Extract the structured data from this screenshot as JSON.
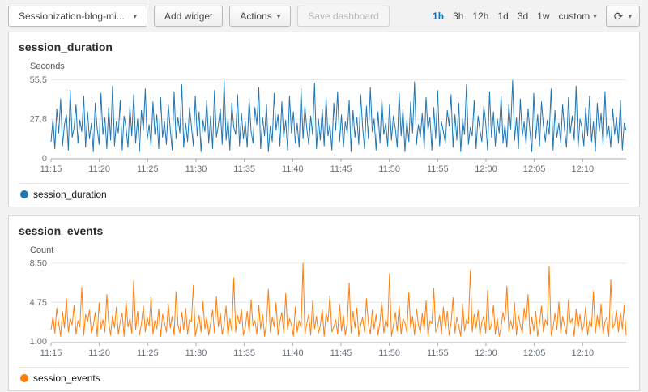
{
  "icons": {
    "caret_down": "▾",
    "refresh": "⟳"
  },
  "colors": {
    "accent_blue": "#0073bb",
    "series_blue": "#1f77b4",
    "series_orange": "#ff7f0e"
  },
  "toolbar": {
    "dashboard_name": "Sessionization-blog-mi...",
    "add_widget": "Add widget",
    "actions": "Actions",
    "save_dashboard": "Save dashboard",
    "ranges": [
      "1h",
      "3h",
      "12h",
      "1d",
      "3d",
      "1w"
    ],
    "selected_range": "1h",
    "custom_label": "custom"
  },
  "chart_data": [
    {
      "type": "line",
      "title": "session_duration",
      "ylabel": "Seconds",
      "color": "#1f77b4",
      "ylim": [
        0,
        58
      ],
      "y_ticks": [
        0,
        27.8,
        55.5
      ],
      "y_tick_labels": [
        "0",
        "27.8",
        "55.5"
      ],
      "x_labels": [
        "11:15",
        "11:20",
        "11:25",
        "11:30",
        "11:35",
        "11:40",
        "11:45",
        "11:50",
        "11:55",
        "12:00",
        "12:05",
        "12:10"
      ],
      "x_tick_interval_minutes": 5,
      "x_total_minutes": 59.5,
      "grid": "horizontal-only",
      "legend": [
        {
          "label": "session_duration",
          "color": "#1f77b4"
        }
      ],
      "values": [
        12,
        28,
        7,
        35,
        18,
        42,
        9,
        24,
        31,
        6,
        48,
        15,
        22,
        38,
        11,
        27,
        19,
        44,
        8,
        33,
        14,
        25,
        5,
        39,
        21,
        10,
        46,
        17,
        29,
        7,
        36,
        13,
        51,
        9,
        26,
        18,
        41,
        6,
        30,
        22,
        8,
        37,
        16,
        45,
        11,
        28,
        5,
        34,
        20,
        49,
        13,
        24,
        9,
        40,
        17,
        31,
        7,
        43,
        15,
        26,
        10,
        38,
        21,
        6,
        47,
        14,
        29,
        18,
        52,
        8,
        25,
        12,
        36,
        23,
        9,
        44,
        16,
        33,
        5,
        27,
        19,
        41,
        11,
        30,
        7,
        48,
        15,
        24,
        35,
        10,
        55,
        13,
        28,
        6,
        39,
        22,
        17,
        45,
        9,
        32,
        14,
        26,
        8,
        42,
        19,
        11,
        36,
        24,
        50,
        7,
        29,
        16,
        38,
        5,
        23,
        12,
        46,
        20,
        31,
        9,
        40,
        15,
        27,
        6,
        44,
        18,
        33,
        11,
        25,
        8,
        49,
        14,
        37,
        21,
        10,
        30,
        17,
        53,
        7,
        28,
        13,
        35,
        9,
        43,
        16,
        24,
        6,
        39,
        20,
        47,
        12,
        31,
        8,
        26,
        18,
        41,
        5,
        34,
        15,
        29,
        10,
        45,
        22,
        7,
        37,
        14,
        50,
        19,
        28,
        6,
        33,
        11,
        42,
        17,
        25,
        9,
        38,
        13,
        30,
        21,
        8,
        46,
        16,
        35,
        5,
        27,
        12,
        40,
        18,
        54,
        10,
        24,
        15,
        32,
        7,
        43,
        20,
        29,
        6,
        36,
        14,
        48,
        9,
        26,
        19,
        11,
        34,
        23,
        45,
        8,
        31,
        13,
        39,
        5,
        28,
        17,
        52,
        10,
        22,
        16,
        41,
        7,
        30,
        20,
        12,
        37,
        25,
        6,
        47,
        15,
        33,
        9,
        28,
        18,
        44,
        11,
        24,
        8,
        38,
        21,
        55,
        13,
        29,
        7,
        42,
        16,
        26,
        10,
        35,
        19,
        5,
        46,
        14,
        31,
        9,
        40,
        23,
        12,
        27,
        17,
        49,
        6,
        34,
        15,
        25,
        11,
        38,
        20,
        8,
        43,
        18,
        30,
        13,
        51,
        7,
        28,
        22,
        9,
        36,
        16,
        44,
        12,
        26,
        5,
        39,
        19,
        32,
        10,
        47,
        14,
        23,
        8,
        35,
        17,
        29,
        11,
        41,
        6,
        25,
        20
      ]
    },
    {
      "type": "line",
      "title": "session_events",
      "ylabel": "Count",
      "color": "#ff7f0e",
      "ylim": [
        0.9,
        8.8
      ],
      "y_ticks": [
        1.0,
        4.75,
        8.5
      ],
      "y_tick_labels": [
        "1.00",
        "4.75",
        "8.50"
      ],
      "x_labels": [
        "11:15",
        "11:20",
        "11:25",
        "11:30",
        "11:35",
        "11:40",
        "11:45",
        "11:50",
        "11:55",
        "12:00",
        "12:05",
        "12:10"
      ],
      "x_tick_interval_minutes": 5,
      "x_total_minutes": 59.5,
      "grid": "horizontal-only",
      "legend": [
        {
          "label": "session_events",
          "color": "#ff7f0e"
        }
      ],
      "values": [
        2.1,
        3.4,
        1.8,
        4.2,
        2.7,
        1.5,
        3.9,
        2.3,
        5.1,
        1.9,
        3.2,
        2.6,
        4.5,
        1.7,
        3.0,
        2.4,
        6.2,
        1.6,
        3.6,
        2.9,
        4.0,
        1.8,
        2.5,
        3.8,
        1.5,
        4.7,
        2.2,
        3.1,
        1.9,
        5.5,
        2.8,
        1.6,
        3.5,
        2.3,
        4.3,
        1.7,
        2.9,
        3.7,
        1.5,
        4.9,
        2.4,
        3.2,
        1.8,
        6.8,
        2.1,
        3.9,
        1.6,
        2.7,
        4.4,
        1.9,
        3.3,
        2.5,
        5.2,
        1.7,
        3.0,
        2.2,
        4.1,
        1.5,
        3.6,
        2.8,
        1.9,
        4.6,
        2.3,
        3.4,
        1.6,
        5.8,
        2.6,
        1.8,
        3.8,
        2.1,
        4.2,
        1.7,
        3.1,
        2.9,
        6.4,
        1.5,
        2.5,
        3.5,
        1.9,
        4.8,
        2.2,
        3.3,
        1.6,
        2.8,
        4.0,
        1.8,
        5.3,
        2.4,
        3.7,
        1.7,
        2.6,
        4.4,
        1.5,
        3.2,
        2.0,
        7.1,
        1.9,
        3.5,
        2.7,
        4.1,
        1.6,
        2.3,
        3.9,
        1.8,
        5.0,
        2.5,
        3.0,
        1.7,
        4.5,
        2.2,
        3.6,
        1.5,
        2.8,
        6.0,
        1.9,
        3.3,
        2.4,
        4.7,
        1.6,
        2.9,
        3.8,
        1.8,
        5.6,
        2.1,
        3.2,
        2.6,
        1.5,
        4.3,
        1.9,
        3.0,
        2.3,
        8.5,
        1.7,
        2.7,
        3.6,
        1.6,
        4.9,
        2.2,
        3.4,
        1.8,
        2.5,
        4.1,
        1.5,
        3.7,
        2.9,
        5.4,
        1.9,
        2.4,
        3.1,
        1.7,
        4.6,
        2.0,
        3.5,
        1.6,
        2.8,
        6.6,
        1.8,
        3.9,
        2.3,
        4.2,
        1.5,
        2.6,
        3.3,
        1.9,
        5.1,
        2.7,
        1.7,
        4.0,
        2.2,
        3.6,
        1.6,
        2.9,
        4.8,
        1.8,
        3.1,
        2.4,
        7.5,
        1.5,
        2.5,
        3.8,
        2.0,
        4.4,
        1.7,
        3.2,
        2.8,
        1.9,
        5.7,
        2.3,
        3.4,
        1.6,
        4.1,
        2.6,
        1.8,
        3.7,
        2.1,
        4.9,
        1.5,
        3.0,
        2.7,
        6.1,
        1.9,
        2.4,
        3.5,
        1.7,
        4.3,
        2.2,
        3.9,
        1.6,
        2.8,
        5.2,
        1.8,
        3.3,
        2.5,
        1.5,
        4.6,
        2.0,
        3.1,
        2.7,
        7.8,
        1.9,
        3.6,
        2.3,
        4.0,
        1.6,
        2.9,
        3.4,
        1.8,
        5.9,
        2.1,
        2.6,
        4.5,
        1.7,
        3.2,
        1.5,
        2.4,
        3.8,
        2.8,
        6.3,
        1.9,
        3.0,
        2.2,
        4.7,
        1.6,
        3.5,
        2.5,
        1.8,
        4.2,
        2.9,
        5.5,
        1.7,
        3.3,
        2.0,
        3.9,
        1.5,
        2.7,
        4.4,
        1.9,
        3.1,
        2.6,
        8.2,
        1.6,
        2.3,
        3.7,
        2.1,
        4.8,
        1.8,
        3.4,
        2.5,
        1.7,
        5.0,
        2.8,
        3.2,
        1.5,
        4.1,
        2.2,
        3.6,
        1.9,
        2.6,
        4.3,
        1.6,
        3.0,
        2.4,
        5.8,
        1.8,
        3.5,
        2.1,
        4.6,
        1.7,
        2.9,
        3.3,
        1.5,
        6.9,
        2.3,
        2.7,
        4.0,
        1.9,
        3.8,
        2.2,
        4.5,
        1.6
      ]
    }
  ]
}
